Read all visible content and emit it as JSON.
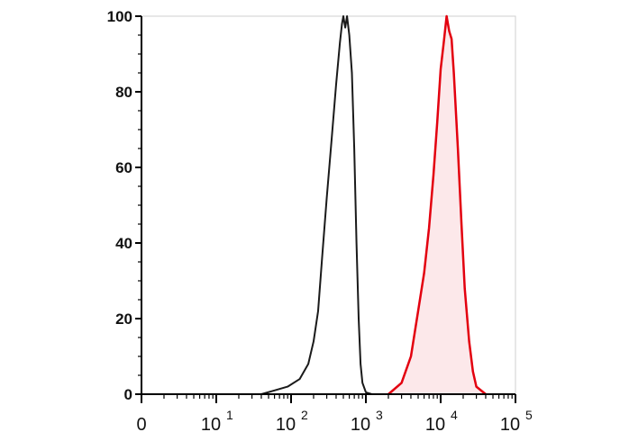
{
  "chart_data": {
    "type": "area",
    "title": "",
    "xlabel": "",
    "ylabel": "",
    "x_scale": "log",
    "xlim": [
      1,
      100000
    ],
    "ylim": [
      0,
      100
    ],
    "y_ticks": [
      "0",
      "20",
      "40",
      "60",
      "80",
      "100"
    ],
    "x_ticks": [
      {
        "value": 1,
        "base": "0",
        "exp": ""
      },
      {
        "value": 10,
        "base": "10",
        "exp": "1"
      },
      {
        "value": 100,
        "base": "10",
        "exp": "2"
      },
      {
        "value": 1000,
        "base": "10",
        "exp": "3"
      },
      {
        "value": 10000,
        "base": "10",
        "exp": "4"
      },
      {
        "value": 100000,
        "base": "10",
        "exp": "5"
      }
    ],
    "grid": false,
    "series": [
      {
        "color": "#1a1a1a",
        "fill": "none",
        "x": [
          40,
          60,
          90,
          130,
          170,
          200,
          230,
          260,
          300,
          350,
          400,
          450,
          480,
          500,
          530,
          560,
          600,
          650,
          700,
          750,
          800,
          850,
          900,
          1000,
          1200
        ],
        "y": [
          0,
          1,
          2,
          4,
          8,
          14,
          22,
          36,
          52,
          68,
          82,
          93,
          98,
          100,
          97,
          100,
          95,
          85,
          65,
          40,
          20,
          8,
          3,
          0.5,
          0
        ]
      },
      {
        "color": "#e3000f",
        "fill": "#fce8ea",
        "x": [
          2000,
          3000,
          4000,
          5000,
          6000,
          7000,
          8000,
          9000,
          10000,
          11000,
          12000,
          13000,
          14000,
          15000,
          17000,
          19000,
          21000,
          24000,
          27000,
          30000,
          40000
        ],
        "y": [
          0,
          3,
          10,
          22,
          32,
          44,
          58,
          72,
          86,
          93,
          100,
          96,
          94,
          85,
          65,
          45,
          28,
          14,
          6,
          2,
          0
        ]
      }
    ]
  }
}
